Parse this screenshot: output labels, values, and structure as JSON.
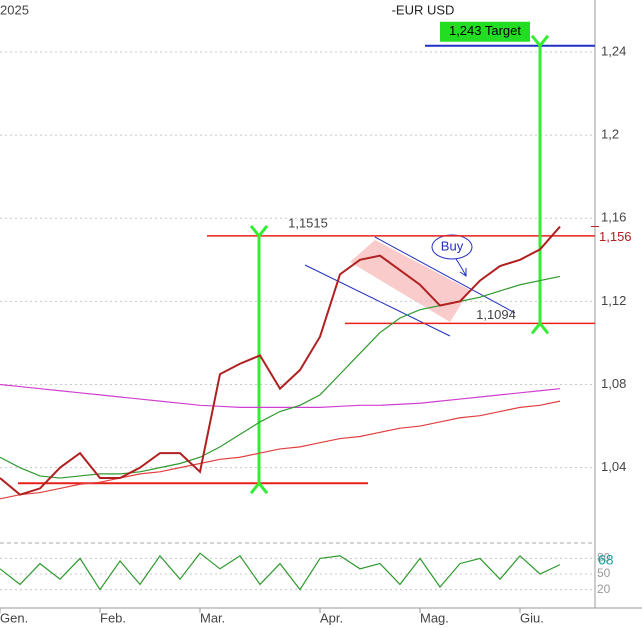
{
  "chart_data": {
    "type": "line",
    "title": "-EUR USD",
    "year_label": "2025",
    "categories": [
      "Gen.",
      null,
      null,
      null,
      null,
      "Feb.",
      null,
      null,
      null,
      null,
      "Mar.",
      null,
      null,
      null,
      null,
      null,
      "Apr.",
      null,
      null,
      null,
      null,
      "Mag.",
      null,
      null,
      null,
      null,
      "Giu.",
      null,
      null
    ],
    "series": [
      {
        "color": "#b02020",
        "values": [
          1.035,
          1.027,
          1.03,
          1.04,
          1.047,
          1.035,
          1.035,
          1.04,
          1.047,
          1.047,
          1.038,
          1.085,
          1.09,
          1.094,
          1.078,
          1.087,
          1.103,
          1.133,
          1.14,
          1.142,
          1.135,
          1.128,
          1.118,
          1.12,
          1.13,
          1.137,
          1.14,
          1.145,
          1.156
        ]
      },
      {
        "color": "#2e9a2e",
        "values": [
          1.045,
          1.04,
          1.036,
          1.035,
          1.036,
          1.037,
          1.037,
          1.038,
          1.04,
          1.042,
          1.045,
          1.05,
          1.056,
          1.062,
          1.067,
          1.07,
          1.075,
          1.085,
          1.095,
          1.105,
          1.112,
          1.116,
          1.118,
          1.12,
          1.122,
          1.125,
          1.128,
          1.13,
          1.132
        ]
      },
      {
        "color": "#d040d0",
        "values": [
          1.08,
          1.079,
          1.078,
          1.077,
          1.076,
          1.075,
          1.074,
          1.073,
          1.072,
          1.071,
          1.07,
          1.0695,
          1.069,
          1.069,
          1.069,
          1.069,
          1.069,
          1.0695,
          1.07,
          1.07,
          1.0705,
          1.071,
          1.072,
          1.073,
          1.074,
          1.075,
          1.076,
          1.077,
          1.078
        ]
      },
      {
        "color": "#e04040",
        "values": [
          1.025,
          1.027,
          1.028,
          1.03,
          1.032,
          1.033,
          1.035,
          1.037,
          1.038,
          1.04,
          1.042,
          1.044,
          1.045,
          1.047,
          1.049,
          1.05,
          1.052,
          1.054,
          1.055,
          1.057,
          1.059,
          1.06,
          1.062,
          1.064,
          1.065,
          1.067,
          1.069,
          1.07,
          1.072
        ]
      }
    ],
    "ylim": [
      1.01,
      1.265
    ],
    "yticks": [
      {
        "value": 1.04,
        "label": "1,04"
      },
      {
        "value": 1.08,
        "label": "1,08"
      },
      {
        "value": 1.12,
        "label": "1,12"
      },
      {
        "value": 1.16,
        "label": "1,16"
      },
      {
        "value": 1.2,
        "label": "1,2"
      },
      {
        "value": 1.24,
        "label": "1,24"
      }
    ],
    "grid": true,
    "current_price": {
      "value": 1.156,
      "label": "1,156"
    },
    "resistance": {
      "value": 1.1515,
      "label": "1,1515"
    },
    "support": {
      "value": 1.1094,
      "label": "1,1094"
    },
    "target": {
      "value": 1.243,
      "label": "1,243 Target"
    },
    "base_level": 1.0325,
    "signal": "Buy",
    "oscillator": {
      "values": [
        60,
        30,
        70,
        40,
        80,
        20,
        75,
        30,
        85,
        40,
        90,
        60,
        85,
        30,
        70,
        20,
        80,
        85,
        60,
        70,
        30,
        80,
        25,
        70,
        80,
        40,
        85,
        50,
        68
      ],
      "color": "#2e9a2e",
      "last_label": "68",
      "ylim": [
        0,
        100
      ],
      "yticks": [
        20,
        50,
        80
      ]
    }
  }
}
